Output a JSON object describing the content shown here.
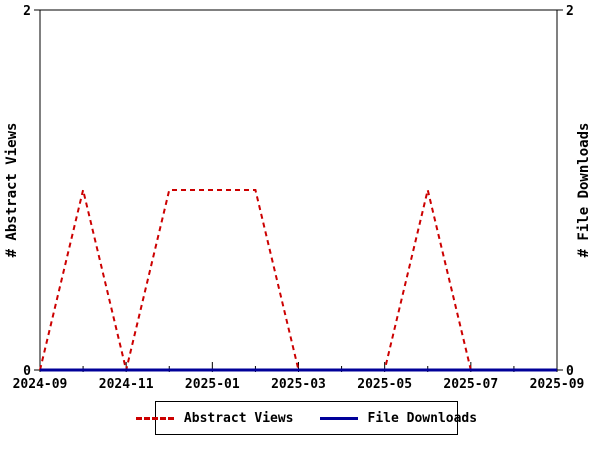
{
  "window": {
    "background": "#ffffff"
  },
  "chart_data": {
    "type": "line",
    "title": "",
    "x": [
      "2024-09",
      "2024-10",
      "2024-11",
      "2024-12",
      "2025-01",
      "2025-02",
      "2025-03",
      "2025-04",
      "2025-05",
      "2025-06",
      "2025-07",
      "2025-08",
      "2025-09"
    ],
    "x_major_tick_labels": [
      "2024-09",
      "2024-11",
      "2025-01",
      "2025-03",
      "2025-05",
      "2025-07",
      "2025-09"
    ],
    "ylim": [
      0,
      2
    ],
    "y_ticks": [
      {
        "value": 0,
        "label": "0"
      },
      {
        "value": 2,
        "label": "2"
      }
    ],
    "ylabel_left": "# Abstract Views",
    "ylabel_right": "# File Downloads",
    "grid": false,
    "legend_position": "bottom-center",
    "axis_color": "#000000",
    "series": [
      {
        "name": "Abstract Views",
        "color": "#cc0000",
        "line_style": "dashed",
        "line_width": 2,
        "values": [
          0,
          1,
          0,
          1,
          1,
          1,
          0,
          0,
          0,
          1,
          0,
          0,
          0
        ]
      },
      {
        "name": "File Downloads",
        "color": "#000099",
        "line_style": "solid",
        "line_width": 3,
        "values": [
          0,
          0,
          0,
          0,
          0,
          0,
          0,
          0,
          0,
          0,
          0,
          0,
          0
        ]
      }
    ]
  }
}
